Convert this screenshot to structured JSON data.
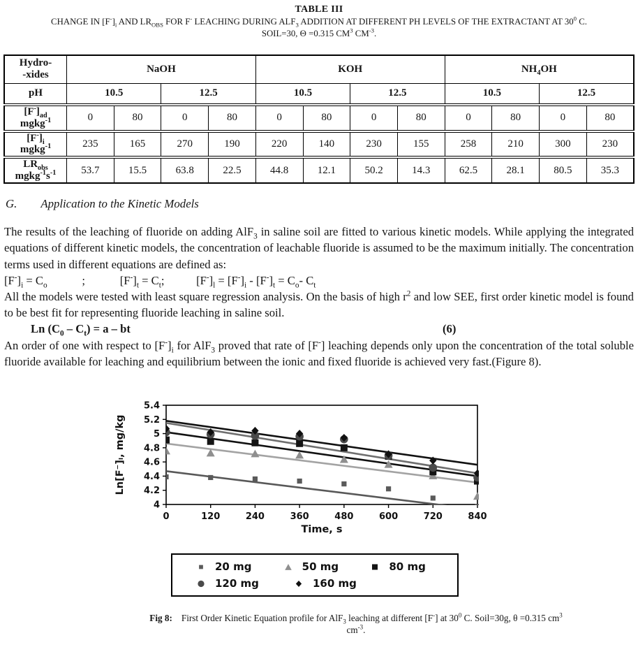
{
  "header": {
    "title": "TABLE III",
    "subtitle_line1_html": "CHANGE IN [F<sup>-</sup>]<sub>i</sub> AND LR<sub>OBS</sub> FOR F<sup>-</sup> LEACHING DURING ALF<sub>3</sub> ADDITION AT DIFFERENT PH LEVELS OF THE EXTRACTANT AT 30<sup>0</sup> C.",
    "subtitle_line2_html": "SOIL=30, Θ =0.315 CM<sup>3</sup> CM<sup>-3</sup>."
  },
  "table": {
    "corner_html": "Hydro-<br>-xides",
    "group_headers_html": [
      "NaOH",
      "KOH",
      "NH<sub>4</sub>OH"
    ],
    "ph_row_label": "pH",
    "ph_values": [
      "10.5",
      "12.5",
      "10.5",
      "12.5",
      "10.5",
      "12.5"
    ],
    "rows": [
      {
        "label_html": "[F<sup>-</sup>]<sub>ad</sub><br>mgkg<sup>-1</sup>",
        "values": [
          "0",
          "80",
          "0",
          "80",
          "0",
          "80",
          "0",
          "80",
          "0",
          "80",
          "0",
          "80"
        ]
      },
      {
        "label_html": "[F<sup>-</sup>]<sub>i</sub><br>mgkg<sup>-1</sup>",
        "values": [
          "235",
          "165",
          "270",
          "190",
          "220",
          "140",
          "230",
          "155",
          "258",
          "210",
          "300",
          "230"
        ]
      },
      {
        "label_html": "LR<sub>obs</sub><br>mgkg<sup>-1</sup>s<sup>-1</sup>",
        "values": [
          "53.7",
          "15.5",
          "63.8",
          "22.5",
          "44.8",
          "12.1",
          "50.2",
          "14.3",
          "62.5",
          "28.1",
          "80.5",
          "35.3"
        ]
      }
    ]
  },
  "section": {
    "heading_number": "G.",
    "heading_title": "Application to the Kinetic Models",
    "para1_html": "The results of the leaching of fluoride on adding AlF<sub>3</sub> in saline soil are fitted to various kinetic models. While applying the integrated equations of different kinetic models, the concentration of leachable fluoride is assumed to be the maximum initially. The concentration terms used in different equations are defined as:",
    "defs_html": "[F<sup>-</sup>]<sub>i</sub> = C<sub>o</sub>&nbsp;&nbsp;&nbsp;&nbsp;&nbsp;&nbsp;&nbsp;&nbsp;&nbsp;&nbsp;&nbsp;&nbsp;;&nbsp;&nbsp;&nbsp;&nbsp;&nbsp;&nbsp;&nbsp;&nbsp;&nbsp;&nbsp;&nbsp;&nbsp;[F<sup>-</sup>]<sub>t</sub> = C<sub>t</sub>;&nbsp;&nbsp;&nbsp;&nbsp;&nbsp;&nbsp;&nbsp;&nbsp;&nbsp;&nbsp;&nbsp;[F<sup>-</sup>]<sub>l</sub> = [F<sup>-</sup>]<sub>i</sub> - [F<sup>-</sup>]<sub>t</sub> = C<sub>o</sub>- C<sub>t</sub>",
    "para2_html": "All the models were tested with least square regression analysis. On the basis of high r<sup>2</sup> and low SEE, first order kinetic model is found to be best fit for representing fluoride leaching in saline soil.",
    "equation_html": "Ln (C<sub>0</sub> – C<sub>t</sub>) = a – bt",
    "equation_number": "(6)",
    "para3_html": "An order of one with respect to [F<sup>-</sup>]<sub>i</sub> for AlF<sub>3</sub> proved that rate of [F<sup>-</sup>] leaching depends only upon the concentration of the total soluble fluoride available for leaching and equilibrium between the ionic and fixed fluoride is achieved very fast.(Figure 8)."
  },
  "chart_data": {
    "type": "scatter",
    "title": "",
    "xlabel": "Time, s",
    "ylabel": "Ln[F⁻]ₗ, mg/kg",
    "xlim": [
      0,
      840
    ],
    "ylim": [
      4,
      5.4
    ],
    "grid": false,
    "legend_position": "below",
    "xticks": [
      0,
      120,
      240,
      360,
      480,
      600,
      720,
      840
    ],
    "yticks": [
      4,
      4.2,
      4.4,
      4.6,
      4.8,
      5,
      5.2,
      5.4
    ],
    "ytick_labels": [
      "4",
      "4.2",
      "4.4",
      "4.6",
      "4.8",
      "5",
      "5.2",
      "5.4"
    ],
    "x": [
      0,
      120,
      240,
      360,
      480,
      600,
      720,
      840
    ],
    "series": [
      {
        "name": "20 mg",
        "marker": "square-small",
        "color": "#5a5a5a",
        "line_color": "#585858",
        "values": [
          4.39,
          4.38,
          4.36,
          4.33,
          4.29,
          4.22,
          4.09,
          3.97
        ],
        "trendline": [
          4.47,
          3.93
        ]
      },
      {
        "name": "50 mg",
        "marker": "triangle",
        "color": "#8f8f8f",
        "line_color": "#a3a3a3",
        "values": [
          4.76,
          4.73,
          4.72,
          4.7,
          4.64,
          4.57,
          4.41,
          4.12
        ],
        "trendline": [
          4.86,
          4.31
        ]
      },
      {
        "name": "80 mg",
        "marker": "square",
        "color": "#141414",
        "line_color": "#111111",
        "values": [
          4.91,
          4.89,
          4.87,
          4.86,
          4.8,
          4.68,
          4.46,
          4.33
        ],
        "trendline": [
          5.02,
          4.4
        ]
      },
      {
        "name": "120 mg",
        "marker": "circle",
        "color": "#4a4a4a",
        "line_color": "#6f6f6f",
        "values": [
          5.02,
          4.99,
          4.97,
          4.96,
          4.92,
          4.69,
          4.52,
          4.38
        ],
        "trendline": [
          5.15,
          4.44
        ]
      },
      {
        "name": "160 mg",
        "marker": "diamond",
        "color": "#111111",
        "line_color": "#111111",
        "values": [
          5.07,
          5.02,
          5.04,
          5.0,
          4.94,
          4.71,
          4.62,
          4.44
        ],
        "trendline": [
          5.18,
          4.56
        ]
      }
    ]
  },
  "figure": {
    "caption_label": "Fig 8:",
    "caption_html": "First Order Kinetic Equation profile for AlF<sub>3</sub> leaching at different [F<sup>-</sup>] at 30<sup>0</sup> C. Soil=30g, θ =0.315 cm<sup>3</sup><br>cm<sup>-3</sup>."
  }
}
